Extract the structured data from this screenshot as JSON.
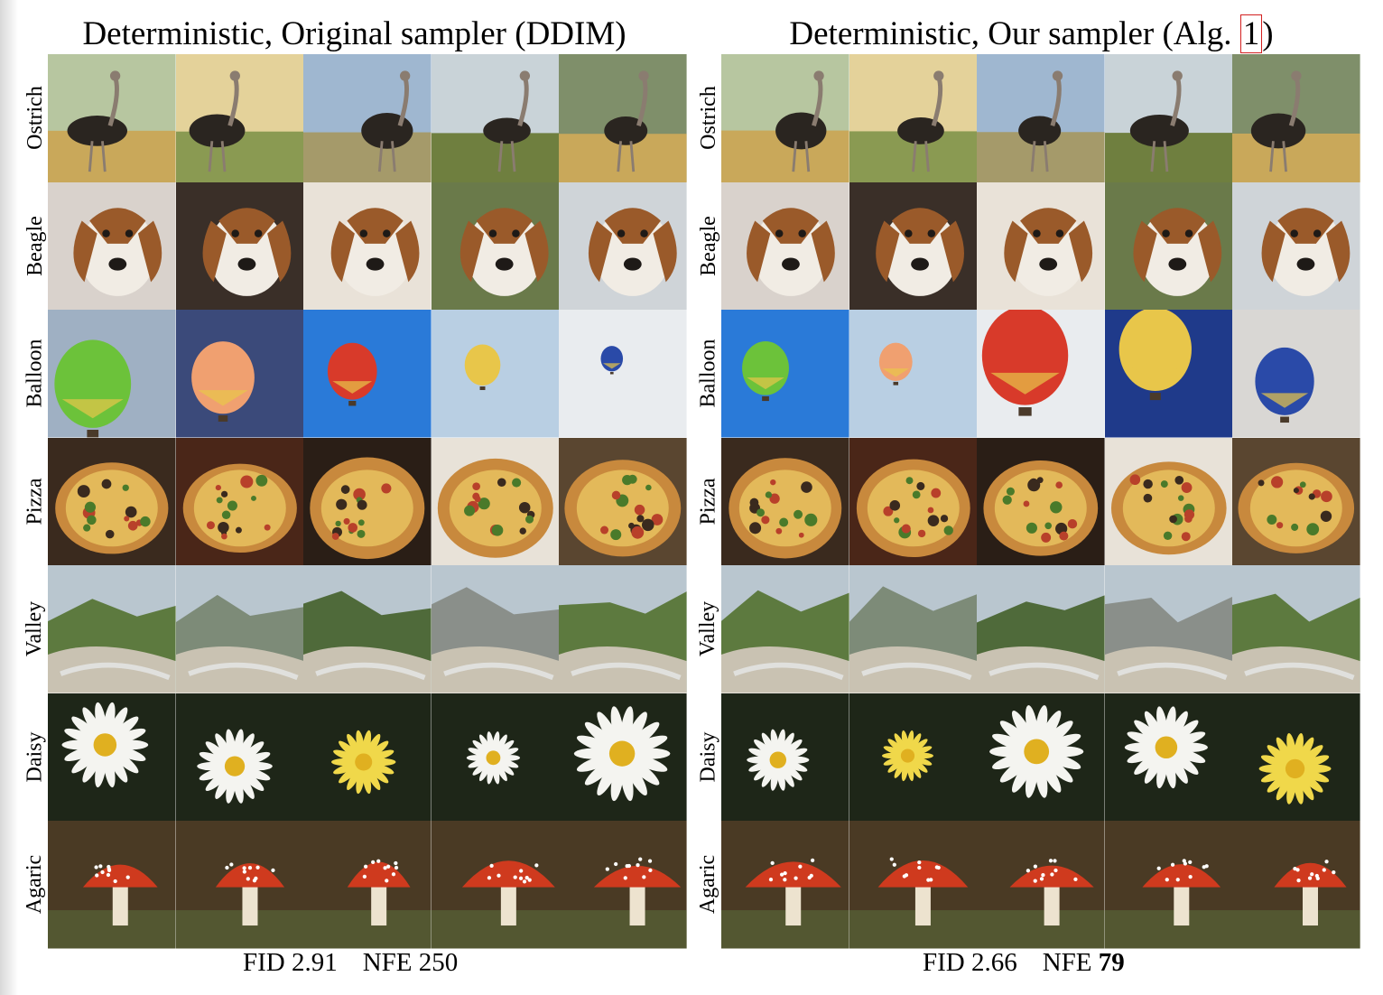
{
  "panels": [
    {
      "title": "Deterministic, Original sampler (DDIM)",
      "fid_label": "FID 2.91",
      "nfe_label": "NFE",
      "nfe_value": "250"
    },
    {
      "title_prefix": "Deterministic, Our sampler (Alg. ",
      "title_ref": "1",
      "title_suffix": ")",
      "fid_label": "FID 2.66",
      "nfe_label": "NFE",
      "nfe_value": "79"
    }
  ],
  "row_labels": [
    "Ostrich",
    "Beagle",
    "Balloon",
    "Pizza",
    "Valley",
    "Daisy",
    "Agaric"
  ],
  "colors": {
    "reference_box": "#d32020",
    "ostrich_sky": "#9fb7d0",
    "ostrich_grass": "#8a9a52",
    "ostrich_body": "#2a2520",
    "beagle_brown": "#9a5a2a",
    "beagle_white": "#f1ece4",
    "beagle_black": "#1e1a17",
    "balloon_sky": "#6b8fc4",
    "balloon_red": "#d83a2a",
    "balloon_yellow": "#e8c64a",
    "pizza_crust": "#c8893d",
    "pizza_cheese": "#e3b95a",
    "pizza_sauce": "#b8402a",
    "valley_sky": "#b9c6cf",
    "valley_green": "#5d7a3f",
    "valley_rock": "#c9c2b2",
    "daisy_petal": "#f4f4f0",
    "daisy_center": "#e0b020",
    "daisy_dark": "#1e2618",
    "agaric_cap": "#cf3a1e",
    "agaric_stem": "#ede3cf",
    "agaric_ground": "#4a3a24"
  }
}
